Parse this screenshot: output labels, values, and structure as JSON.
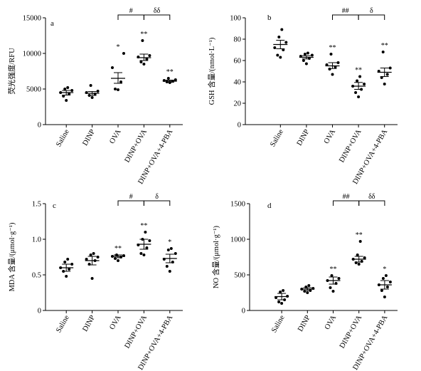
{
  "chart_data": [
    {
      "type": "scatter",
      "panel": "a",
      "ylabel": "荧光强度/RFU",
      "ylim": [
        0,
        15000
      ],
      "yticks": [
        0,
        5000,
        10000,
        15000
      ],
      "categories": [
        "Saline",
        "DINP",
        "OVA",
        "DINP+OVA",
        "DINP+OVA+4-PBA"
      ],
      "groups": [
        {
          "points": [
            3400,
            4000,
            4300,
            4500,
            4800,
            5000,
            5200
          ],
          "mean": 4500,
          "sem_low": 4150,
          "sem_high": 4800,
          "sig": ""
        },
        {
          "points": [
            3800,
            4100,
            4300,
            4500,
            4700,
            5500
          ],
          "mean": 4400,
          "sem_low": 4100,
          "sem_high": 4650,
          "sig": ""
        },
        {
          "points": [
            4900,
            5000,
            6000,
            8000,
            10000
          ],
          "mean": 6500,
          "sem_low": 5800,
          "sem_high": 7300,
          "sig": "*"
        },
        {
          "points": [
            8500,
            8800,
            9200,
            9500,
            9700,
            11800
          ],
          "mean": 9400,
          "sem_low": 9000,
          "sem_high": 9900,
          "sig": "**"
        },
        {
          "points": [
            5900,
            6000,
            6100,
            6200,
            6300,
            6500
          ],
          "mean": 6100,
          "sem_low": 5950,
          "sem_high": 6250,
          "sig": "**"
        }
      ],
      "brackets": [
        {
          "from": 2,
          "to": 3,
          "label": "#"
        },
        {
          "from": 3,
          "to": 4,
          "label": "δδ"
        }
      ]
    },
    {
      "type": "scatter",
      "panel": "b",
      "ylabel": "GSH 含量/(nmol·L⁻¹)",
      "ylim": [
        0,
        100
      ],
      "yticks": [
        0,
        20,
        40,
        60,
        80,
        100
      ],
      "categories": [
        "Saline",
        "DINP",
        "OVA",
        "DINP+OVA",
        "DINP+OVA+4-PBA"
      ],
      "groups": [
        {
          "points": [
            63,
            65,
            70,
            72,
            77,
            82,
            89
          ],
          "mean": 75,
          "sem_low": 71,
          "sem_high": 79,
          "sig": ""
        },
        {
          "points": [
            57,
            60,
            62,
            64,
            65,
            66,
            67
          ],
          "mean": 63,
          "sem_low": 61.5,
          "sem_high": 64.5,
          "sig": ""
        },
        {
          "points": [
            47,
            52,
            54,
            56,
            58,
            66
          ],
          "mean": 55,
          "sem_low": 52.5,
          "sem_high": 58,
          "sig": "**"
        },
        {
          "points": [
            26,
            30,
            33,
            36,
            38,
            41,
            45
          ],
          "mean": 36,
          "sem_low": 33,
          "sem_high": 39.5,
          "sig": "**"
        },
        {
          "points": [
            38,
            44,
            47,
            50,
            53,
            68
          ],
          "mean": 49,
          "sem_low": 45,
          "sem_high": 53,
          "sig": "**"
        }
      ],
      "brackets": [
        {
          "from": 2,
          "to": 3,
          "label": "##"
        },
        {
          "from": 3,
          "to": 4,
          "label": "δ"
        }
      ]
    },
    {
      "type": "scatter",
      "panel": "c",
      "ylabel": "MDA 含量/(μmol·g⁻¹)",
      "ylim": [
        0,
        1.5
      ],
      "yticks": [
        "0",
        "0.5",
        "1.0",
        "1.5"
      ],
      "categories": [
        "Saline",
        "DINP",
        "OVA",
        "DINP+OVA",
        "DINP+OVA+4-PBA"
      ],
      "groups": [
        {
          "points": [
            0.48,
            0.55,
            0.58,
            0.6,
            0.65,
            0.68,
            0.72
          ],
          "mean": 0.6,
          "sem_low": 0.55,
          "sem_high": 0.65,
          "sig": ""
        },
        {
          "points": [
            0.45,
            0.65,
            0.7,
            0.72,
            0.75,
            0.78,
            0.8
          ],
          "mean": 0.7,
          "sem_low": 0.64,
          "sem_high": 0.76,
          "sig": ""
        },
        {
          "points": [
            0.7,
            0.73,
            0.75,
            0.76,
            0.77,
            0.78
          ],
          "mean": 0.76,
          "sem_low": 0.74,
          "sem_high": 0.78,
          "sig": "**"
        },
        {
          "points": [
            0.78,
            0.8,
            0.88,
            0.92,
            0.98,
            1.0,
            1.1
          ],
          "mean": 0.93,
          "sem_low": 0.86,
          "sem_high": 1.0,
          "sig": "**"
        },
        {
          "points": [
            0.55,
            0.62,
            0.68,
            0.72,
            0.8,
            0.85,
            0.87
          ],
          "mean": 0.73,
          "sem_low": 0.67,
          "sem_high": 0.79,
          "sig": "*"
        }
      ],
      "brackets": [
        {
          "from": 2,
          "to": 3,
          "label": "#"
        },
        {
          "from": 3,
          "to": 4,
          "label": "δ"
        }
      ]
    },
    {
      "type": "scatter",
      "panel": "d",
      "ylabel": "NO 含量/(μmol·g⁻¹)",
      "ylim": [
        0,
        1500
      ],
      "yticks": [
        0,
        500,
        1000,
        1500
      ],
      "categories": [
        "Saline",
        "DINP",
        "OVA",
        "DINP+OVA",
        "DINP+OVA+4-PBA"
      ],
      "groups": [
        {
          "points": [
            100,
            120,
            150,
            180,
            200,
            260,
            280
          ],
          "mean": 195,
          "sem_low": 150,
          "sem_high": 240,
          "sig": ""
        },
        {
          "points": [
            250,
            270,
            280,
            300,
            310,
            330,
            350
          ],
          "mean": 300,
          "sem_low": 280,
          "sem_high": 320,
          "sig": ""
        },
        {
          "points": [
            270,
            320,
            380,
            420,
            450,
            490
          ],
          "mean": 420,
          "sem_low": 370,
          "sem_high": 470,
          "sig": "**"
        },
        {
          "points": [
            650,
            670,
            690,
            720,
            740,
            780,
            970
          ],
          "mean": 720,
          "sem_low": 680,
          "sem_high": 760,
          "sig": "**"
        },
        {
          "points": [
            190,
            280,
            330,
            360,
            400,
            450,
            490
          ],
          "mean": 360,
          "sem_low": 300,
          "sem_high": 420,
          "sig": "*"
        }
      ],
      "brackets": [
        {
          "from": 2,
          "to": 3,
          "label": "##"
        },
        {
          "from": 3,
          "to": 4,
          "label": "δδ"
        }
      ]
    }
  ]
}
